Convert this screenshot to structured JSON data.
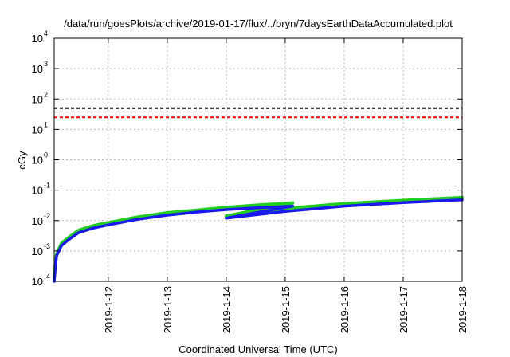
{
  "chart_data": {
    "type": "line",
    "title": "/data/run/goesPlots/archive/2019-01-17/flux/../bryn/7daysEarthDataAccumulated.plot",
    "xlabel": "Coordinated Universal Time (UTC)",
    "ylabel": "cGy",
    "y_scale": "log",
    "ylim": [
      0.0001,
      10000
    ],
    "xlim": [
      "2019-01-11T02:00",
      "2019-01-18T00:00"
    ],
    "grid": true,
    "x_ticks": [
      {
        "date": "2019-01-12",
        "label": "2019-1-12"
      },
      {
        "date": "2019-01-13",
        "label": "2019-1-13"
      },
      {
        "date": "2019-01-14",
        "label": "2019-1-14"
      },
      {
        "date": "2019-01-15",
        "label": "2019-1-15"
      },
      {
        "date": "2019-01-16",
        "label": "2019-1-16"
      },
      {
        "date": "2019-01-17",
        "label": "2019-1-17"
      },
      {
        "date": "2019-01-18",
        "label": "2019-1-18"
      }
    ],
    "y_ticks": [
      {
        "value": 0.0001,
        "mantissa": "10",
        "exp": "-4"
      },
      {
        "value": 0.001,
        "mantissa": "10",
        "exp": "-3"
      },
      {
        "value": 0.01,
        "mantissa": "10",
        "exp": "-2"
      },
      {
        "value": 0.1,
        "mantissa": "10",
        "exp": "-1"
      },
      {
        "value": 1,
        "mantissa": "10",
        "exp": "0"
      },
      {
        "value": 10,
        "mantissa": "10",
        "exp": "1"
      },
      {
        "value": 100,
        "mantissa": "10",
        "exp": "2"
      },
      {
        "value": 1000,
        "mantissa": "10",
        "exp": "3"
      },
      {
        "value": 10000,
        "mantissa": "10",
        "exp": "4"
      }
    ],
    "reference_lines": [
      {
        "value": 50,
        "color": "#000000",
        "style": "dashed"
      },
      {
        "value": 25,
        "color": "#ff0000",
        "style": "dashed"
      }
    ],
    "series": [
      {
        "color": "#22cc22",
        "segments": [
          [
            [
              "2019-01-11T02:00",
              0.00012
            ],
            [
              "2019-01-11T02:30",
              0.0004
            ],
            [
              "2019-01-11T03:00",
              0.0008
            ],
            [
              "2019-01-11T05:00",
              0.0018
            ],
            [
              "2019-01-11T08:00",
              0.0028
            ],
            [
              "2019-01-11T12:00",
              0.0048
            ],
            [
              "2019-01-11T18:00",
              0.0068
            ],
            [
              "2019-01-12T00:00",
              0.0085
            ],
            [
              "2019-01-12T12:00",
              0.013
            ],
            [
              "2019-01-13T00:00",
              0.018
            ],
            [
              "2019-01-13T12:00",
              0.022
            ],
            [
              "2019-01-14T00:00",
              0.027
            ],
            [
              "2019-01-14T12:00",
              0.032
            ],
            [
              "2019-01-15T03:00",
              0.038
            ]
          ],
          [
            [
              "2019-01-14T00:00",
              0.014
            ],
            [
              "2019-01-14T12:00",
              0.022
            ],
            [
              "2019-01-15T00:00",
              0.035
            ],
            [
              "2019-01-15T03:00",
              0.038
            ]
          ],
          [
            [
              "2019-01-14T00:00",
              0.014
            ],
            [
              "2019-01-15T00:00",
              0.025
            ],
            [
              "2019-01-16T00:00",
              0.036
            ],
            [
              "2019-01-17T00:00",
              0.046
            ],
            [
              "2019-01-18T00:00",
              0.057
            ]
          ]
        ]
      },
      {
        "color": "#1a1aee",
        "segments": [
          [
            [
              "2019-01-11T02:00",
              0.0001
            ],
            [
              "2019-01-11T02:30",
              0.0003
            ],
            [
              "2019-01-11T03:00",
              0.0007
            ],
            [
              "2019-01-11T05:00",
              0.0015
            ],
            [
              "2019-01-11T08:00",
              0.0024
            ],
            [
              "2019-01-11T12:00",
              0.004
            ],
            [
              "2019-01-11T18:00",
              0.0057
            ],
            [
              "2019-01-12T00:00",
              0.0072
            ],
            [
              "2019-01-12T12:00",
              0.011
            ],
            [
              "2019-01-13T00:00",
              0.015
            ],
            [
              "2019-01-13T12:00",
              0.019
            ],
            [
              "2019-01-14T00:00",
              0.023
            ],
            [
              "2019-01-14T12:00",
              0.026
            ],
            [
              "2019-01-15T03:00",
              0.03
            ]
          ],
          [
            [
              "2019-01-14T00:00",
              0.012
            ],
            [
              "2019-01-14T12:00",
              0.018
            ],
            [
              "2019-01-15T00:00",
              0.027
            ],
            [
              "2019-01-15T03:00",
              0.03
            ]
          ],
          [
            [
              "2019-01-14T00:00",
              0.012
            ],
            [
              "2019-01-15T00:00",
              0.02
            ],
            [
              "2019-01-16T00:00",
              0.03
            ],
            [
              "2019-01-17T00:00",
              0.039
            ],
            [
              "2019-01-18T00:00",
              0.048
            ]
          ]
        ]
      }
    ]
  }
}
